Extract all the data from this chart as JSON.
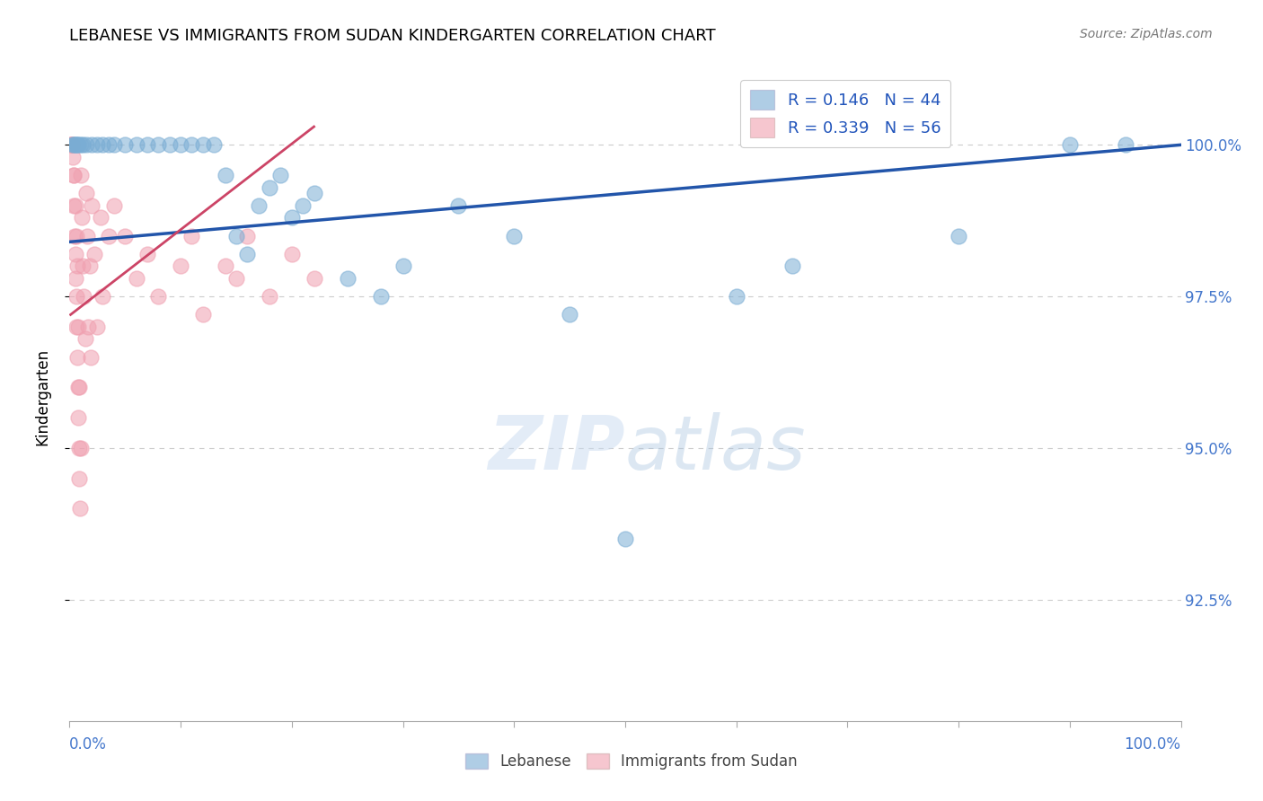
{
  "title": "LEBANESE VS IMMIGRANTS FROM SUDAN KINDERGARTEN CORRELATION CHART",
  "source": "Source: ZipAtlas.com",
  "ylabel": "Kindergarten",
  "legend_blue_r": "R = 0.146",
  "legend_blue_n": "N = 44",
  "legend_pink_r": "R = 0.339",
  "legend_pink_n": "N = 56",
  "yticks": [
    92.5,
    95.0,
    97.5,
    100.0
  ],
  "ytick_labels": [
    "92.5%",
    "95.0%",
    "97.5%",
    "100.0%"
  ],
  "xlim": [
    0.0,
    100.0
  ],
  "ylim": [
    90.5,
    101.2
  ],
  "blue_color": "#7aadd4",
  "pink_color": "#f0a0b0",
  "blue_line_color": "#2255aa",
  "pink_line_color": "#cc4466",
  "blue_scatter_x": [
    0.3,
    0.4,
    0.5,
    0.6,
    0.7,
    0.8,
    1.0,
    1.2,
    1.5,
    2.0,
    2.5,
    3.0,
    3.5,
    4.0,
    5.0,
    6.0,
    7.0,
    8.0,
    9.0,
    10.0,
    11.0,
    12.0,
    13.0,
    14.0,
    15.0,
    16.0,
    17.0,
    18.0,
    19.0,
    20.0,
    21.0,
    22.0,
    25.0,
    28.0,
    30.0,
    35.0,
    40.0,
    45.0,
    50.0,
    60.0,
    65.0,
    80.0,
    90.0,
    95.0
  ],
  "blue_scatter_y": [
    100.0,
    100.0,
    100.0,
    100.0,
    100.0,
    100.0,
    100.0,
    100.0,
    100.0,
    100.0,
    100.0,
    100.0,
    100.0,
    100.0,
    100.0,
    100.0,
    100.0,
    100.0,
    100.0,
    100.0,
    100.0,
    100.0,
    100.0,
    99.5,
    98.5,
    98.2,
    99.0,
    99.3,
    99.5,
    98.8,
    99.0,
    99.2,
    97.8,
    97.5,
    98.0,
    99.0,
    98.5,
    97.2,
    93.5,
    97.5,
    98.0,
    98.5,
    100.0,
    100.0
  ],
  "pink_scatter_x": [
    0.1,
    0.15,
    0.2,
    0.25,
    0.3,
    0.35,
    0.4,
    0.45,
    0.5,
    0.55,
    0.6,
    0.65,
    0.7,
    0.75,
    0.8,
    0.85,
    0.9,
    0.95,
    1.0,
    1.1,
    1.2,
    1.3,
    1.4,
    1.5,
    1.6,
    1.7,
    1.8,
    1.9,
    2.0,
    2.2,
    2.5,
    2.8,
    3.0,
    3.5,
    4.0,
    5.0,
    6.0,
    7.0,
    8.0,
    10.0,
    11.0,
    12.0,
    14.0,
    15.0,
    16.0,
    18.0,
    20.0,
    22.0,
    0.3,
    0.4,
    0.5,
    0.6,
    0.7,
    0.8,
    0.9,
    1.0
  ],
  "pink_scatter_y": [
    100.0,
    100.0,
    100.0,
    100.0,
    99.8,
    99.5,
    99.0,
    98.5,
    98.2,
    97.8,
    97.5,
    97.0,
    96.5,
    96.0,
    95.5,
    95.0,
    94.5,
    94.0,
    99.5,
    98.8,
    98.0,
    97.5,
    96.8,
    99.2,
    98.5,
    97.0,
    98.0,
    96.5,
    99.0,
    98.2,
    97.0,
    98.8,
    97.5,
    98.5,
    99.0,
    98.5,
    97.8,
    98.2,
    97.5,
    98.0,
    98.5,
    97.2,
    98.0,
    97.8,
    98.5,
    97.5,
    98.2,
    97.8,
    100.0,
    99.5,
    99.0,
    98.5,
    98.0,
    97.0,
    96.0,
    95.0
  ],
  "blue_trend_x0": 0.0,
  "blue_trend_y0": 98.4,
  "blue_trend_x1": 100.0,
  "blue_trend_y1": 100.0,
  "pink_trend_x0": 0.1,
  "pink_trend_y0": 97.2,
  "pink_trend_x1": 22.0,
  "pink_trend_y1": 100.3
}
